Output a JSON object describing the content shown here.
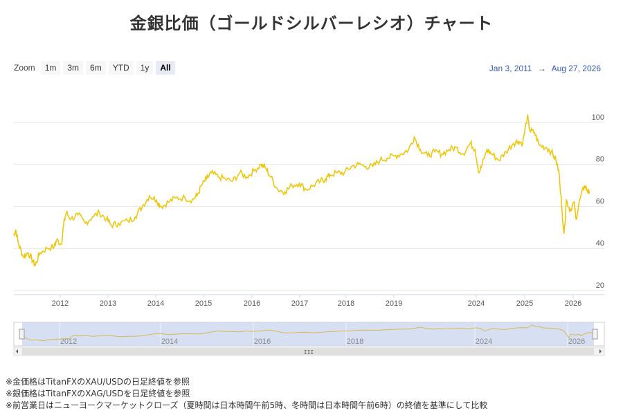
{
  "title": "金銀比価（ゴールドシルバーレシオ）チャート",
  "zoom": {
    "label": "Zoom",
    "buttons": [
      "1m",
      "3m",
      "6m",
      "YTD",
      "1y",
      "All"
    ],
    "active": "All"
  },
  "range": {
    "from": "Jan 3, 2011",
    "arrow": "→",
    "to": "Aug 27, 2026"
  },
  "navigator": {
    "scrollbar_grip": "III"
  },
  "notes": [
    "※金価格はTitanFXのXAU/USDの日足終値を参照",
    "※銀価格はTitanFXのXAG/USDを日足終値を参照",
    "※前営業日はニューヨークマーケットクローズ（夏時間は日本時間午前5時、冬時間は日本時間午前6時）の終値を基準にして比較"
  ],
  "colors": {
    "line": "#f0c400",
    "navigator_fill": "#c9d6ee",
    "grid": "#e6e6e6"
  },
  "chart_data": {
    "type": "line",
    "title": "金銀比価（ゴールドシルバーレシオ）チャート",
    "xlabel": "",
    "ylabel": "",
    "ylim": [
      20,
      105
    ],
    "y_ticks": [
      20,
      40,
      60,
      80,
      100
    ],
    "x_ticks": [
      "2012",
      "2013",
      "2014",
      "2015",
      "2016",
      "2017",
      "2018",
      "2019",
      "2024",
      "2025",
      "2026"
    ],
    "navigator_x_ticks": [
      "2012",
      "2014",
      "2016",
      "2018",
      "2024",
      "2026"
    ],
    "grid": true,
    "legend": "none",
    "series": [
      {
        "values": [
          [
            0.0,
            46
          ],
          [
            0.04,
            49
          ],
          [
            0.1,
            42
          ],
          [
            0.2,
            36
          ],
          [
            0.3,
            38
          ],
          [
            0.4,
            34
          ],
          [
            0.45,
            32
          ],
          [
            0.55,
            38
          ],
          [
            0.7,
            40
          ],
          [
            0.85,
            41
          ],
          [
            0.9,
            44
          ],
          [
            1.0,
            42
          ],
          [
            1.05,
            52
          ],
          [
            1.1,
            57
          ],
          [
            1.2,
            54
          ],
          [
            1.35,
            56
          ],
          [
            1.5,
            52
          ],
          [
            1.65,
            55
          ],
          [
            1.8,
            57
          ],
          [
            1.95,
            54
          ],
          [
            2.05,
            51
          ],
          [
            2.2,
            52
          ],
          [
            2.4,
            53
          ],
          [
            2.55,
            55
          ],
          [
            2.7,
            60
          ],
          [
            2.85,
            65
          ],
          [
            3.0,
            63
          ],
          [
            3.1,
            60
          ],
          [
            3.25,
            62
          ],
          [
            3.4,
            64
          ],
          [
            3.6,
            64
          ],
          [
            3.75,
            63
          ],
          [
            3.85,
            65
          ],
          [
            3.95,
            70
          ],
          [
            4.05,
            73
          ],
          [
            4.15,
            76
          ],
          [
            4.3,
            74
          ],
          [
            4.45,
            73
          ],
          [
            4.6,
            72
          ],
          [
            4.75,
            76
          ],
          [
            4.9,
            74
          ],
          [
            5.05,
            77
          ],
          [
            5.2,
            80
          ],
          [
            5.3,
            78
          ],
          [
            5.4,
            74
          ],
          [
            5.55,
            68
          ],
          [
            5.7,
            67
          ],
          [
            5.85,
            70
          ],
          [
            6.0,
            71
          ],
          [
            6.15,
            68
          ],
          [
            6.3,
            70
          ],
          [
            6.45,
            72
          ],
          [
            6.55,
            73
          ],
          [
            6.65,
            75
          ],
          [
            6.8,
            76
          ],
          [
            6.95,
            76
          ],
          [
            7.1,
            79
          ],
          [
            7.25,
            80
          ],
          [
            7.4,
            79
          ],
          [
            7.55,
            79
          ],
          [
            7.7,
            82
          ],
          [
            7.85,
            83
          ],
          [
            8.0,
            84
          ],
          [
            8.15,
            85
          ],
          [
            8.3,
            87
          ],
          [
            8.42,
            93
          ],
          [
            8.55,
            87
          ],
          [
            8.7,
            84
          ],
          [
            8.85,
            86
          ],
          [
            9.0,
            85
          ],
          [
            9.15,
            87
          ],
          [
            9.3,
            88
          ],
          [
            9.45,
            85
          ],
          [
            9.6,
            90
          ],
          [
            9.7,
            87
          ],
          [
            9.78,
            76
          ],
          [
            9.85,
            80
          ],
          [
            9.95,
            87
          ],
          [
            10.05,
            85
          ],
          [
            10.2,
            82
          ],
          [
            10.35,
            86
          ],
          [
            10.5,
            90
          ],
          [
            10.6,
            91
          ],
          [
            10.7,
            90
          ],
          [
            10.8,
            103
          ],
          [
            10.85,
            96
          ],
          [
            10.95,
            95
          ],
          [
            11.05,
            89
          ],
          [
            11.2,
            88
          ],
          [
            11.3,
            86
          ],
          [
            11.4,
            82
          ],
          [
            11.47,
            75
          ],
          [
            11.52,
            60
          ],
          [
            11.57,
            47
          ],
          [
            11.62,
            63
          ],
          [
            11.7,
            58
          ],
          [
            11.78,
            62
          ],
          [
            11.82,
            54
          ],
          [
            11.9,
            63
          ],
          [
            12.0,
            70
          ],
          [
            12.05,
            68
          ],
          [
            12.1,
            66
          ]
        ]
      }
    ]
  }
}
